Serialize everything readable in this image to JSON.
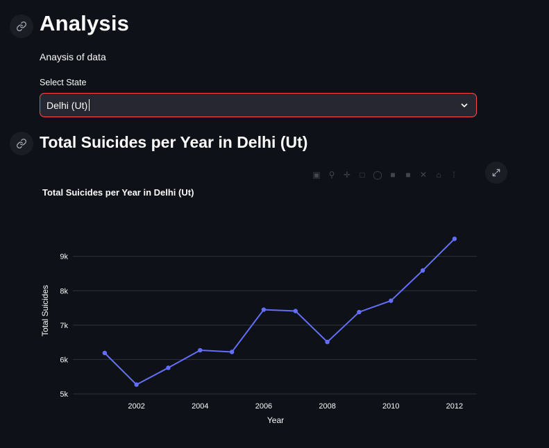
{
  "header": {
    "title": "Analysis",
    "subtitle": "Anaysis of data"
  },
  "select": {
    "label": "Select State",
    "value": "Delhi (Ut)"
  },
  "section": {
    "title": "Total Suicides per Year in Delhi (Ut)"
  },
  "icons": {
    "anchor": "link-icon",
    "dropdown": "chevron-down-icon",
    "fullscreen": "expand-icon"
  },
  "colors": {
    "background": "#0e1117",
    "accent": "#ff4b4b",
    "line": "#636efa",
    "grid": "#31333f"
  },
  "chart_data": {
    "type": "line",
    "title": "Total Suicides per Year in Delhi (Ut)",
    "xlabel": "Year",
    "ylabel": "Total Suicides",
    "x": [
      2001,
      2002,
      2003,
      2004,
      2005,
      2006,
      2007,
      2008,
      2009,
      2010,
      2011,
      2012
    ],
    "y": [
      6190,
      5270,
      5760,
      6270,
      6220,
      7450,
      7410,
      6510,
      7380,
      7710,
      8590,
      9510
    ],
    "xticks": [
      2002,
      2004,
      2006,
      2008,
      2010,
      2012
    ],
    "yticks": [
      5000,
      6000,
      7000,
      8000,
      9000
    ],
    "ytick_labels": [
      "5k",
      "6k",
      "7k",
      "8k",
      "9k"
    ],
    "xlim": [
      2000.0,
      2012.7
    ],
    "ylim": [
      5000,
      9800
    ],
    "grid": true
  }
}
